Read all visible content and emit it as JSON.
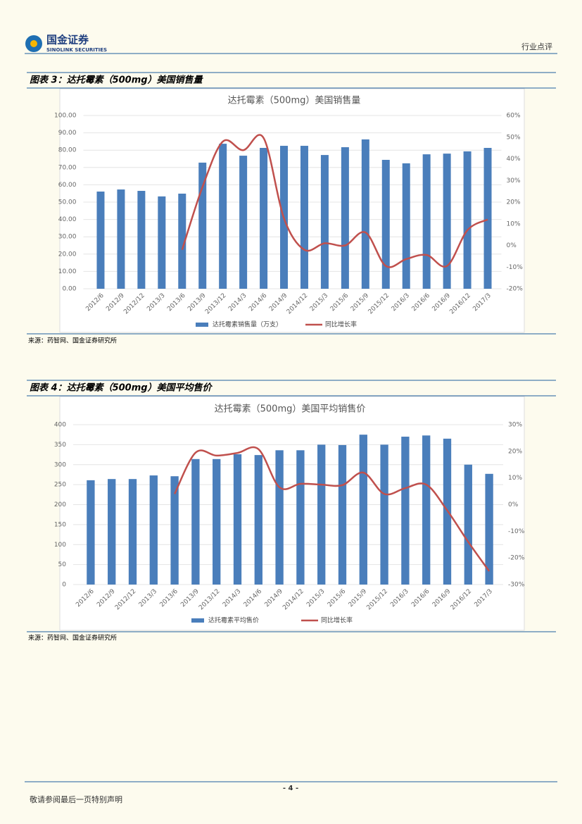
{
  "header": {
    "logo": "国金证券",
    "logo_sub": "SINOLINK SECURITIES",
    "section": "行业点评"
  },
  "captions": [
    "图表 3：达托霉素（500mg）美国销售量",
    "图表 4：达托霉素（500mg）美国平均售价"
  ],
  "sources": [
    "来源：药智网、国金证券研究所",
    "来源：药智网、国金证券研究所"
  ],
  "footer": {
    "page": "- 4 -",
    "note": "敬请参阅最后一页特别声明"
  },
  "chart_data": [
    {
      "type": "bar-line",
      "title": "达托霉素（500mg）美国销售量",
      "categories": [
        "2012/6",
        "2012/9",
        "2012/12",
        "2013/3",
        "2013/6",
        "2013/9",
        "2013/12",
        "2014/3",
        "2014/6",
        "2014/9",
        "2014/12",
        "2015/3",
        "2015/6",
        "2015/9",
        "2015/12",
        "2016/3",
        "2016/6",
        "2016/9",
        "2016/12",
        "2017/3"
      ],
      "series": [
        {
          "name": "达托霉素销售量（万支）",
          "type": "bar",
          "color": "#4a7ebb",
          "values": [
            56.1,
            57.3,
            56.5,
            53.3,
            54.9,
            72.8,
            83.7,
            76.8,
            81.3,
            82.5,
            82.5,
            77.2,
            81.7,
            86.2,
            74.4,
            72.4,
            77.6,
            78,
            79.3,
            81.3
          ]
        },
        {
          "name": "同比增长率",
          "type": "line",
          "axis": "y2",
          "color": "#c0504d",
          "values": [
            null,
            null,
            null,
            null,
            -2,
            27,
            48,
            44,
            49.6,
            12.5,
            -2,
            1,
            0,
            6,
            -9.5,
            -6.3,
            -4.4,
            -9.5,
            7,
            12
          ]
        }
      ],
      "ylim": [
        0,
        100
      ],
      "yticks": [
        {
          "value": 0,
          "label": "0.00"
        },
        {
          "value": 10,
          "label": "10.00"
        },
        {
          "value": 20,
          "label": "20.00"
        },
        {
          "value": 30,
          "label": "30.00"
        },
        {
          "value": 40,
          "label": "40.00"
        },
        {
          "value": 50,
          "label": "50.00"
        },
        {
          "value": 60,
          "label": "60.00"
        },
        {
          "value": 70,
          "label": "70.00"
        },
        {
          "value": 80,
          "label": "80.00"
        },
        {
          "value": 90,
          "label": "90.00"
        },
        {
          "value": 100,
          "label": "100.00"
        }
      ],
      "y2lim": [
        -20,
        60
      ],
      "y2ticks": [
        {
          "value": -20,
          "label": "-20%"
        },
        {
          "value": -10,
          "label": "-10%"
        },
        {
          "value": 0,
          "label": "0%"
        },
        {
          "value": 10,
          "label": "10%"
        },
        {
          "value": 20,
          "label": "20%"
        },
        {
          "value": 30,
          "label": "30%"
        },
        {
          "value": 40,
          "label": "40%"
        },
        {
          "value": 50,
          "label": "50%"
        },
        {
          "value": 60,
          "label": "60%"
        }
      ],
      "grid": true,
      "legend": "bottom"
    },
    {
      "type": "bar-line",
      "title": "达托霉素（500mg）美国平均销售价",
      "categories": [
        "2012/6",
        "2012/9",
        "2012/12",
        "2013/3",
        "2013/6",
        "2013/9",
        "2013/12",
        "2014/3",
        "2014/6",
        "2014/9",
        "2014/12",
        "2015/3",
        "2015/6",
        "2015/9",
        "2015/12",
        "2016/3",
        "2016/6",
        "2016/9",
        "2016/12",
        "2017/3"
      ],
      "series": [
        {
          "name": "达托霉素平均售价",
          "type": "bar",
          "color": "#4a7ebb",
          "values": [
            261,
            264,
            264,
            273,
            271,
            314,
            314,
            326,
            324,
            336,
            336,
            350,
            349,
            375,
            350,
            370,
            373,
            365,
            300,
            277
          ]
        },
        {
          "name": "同比增长率",
          "type": "line",
          "axis": "y2",
          "color": "#c0504d",
          "values": [
            null,
            null,
            null,
            null,
            4,
            19.5,
            18.4,
            19.4,
            20.8,
            6.5,
            7.8,
            7.5,
            7.3,
            12,
            4,
            6.2,
            7.5,
            -2.2,
            -14,
            -25
          ]
        }
      ],
      "ylim": [
        0,
        400
      ],
      "yticks": [
        0,
        50,
        100,
        150,
        200,
        250,
        300,
        350,
        400
      ],
      "y2lim": [
        -30,
        30
      ],
      "y2ticks": [
        {
          "value": -30,
          "label": "-30%"
        },
        {
          "value": -20,
          "label": "-20%"
        },
        {
          "value": -10,
          "label": "-10%"
        },
        {
          "value": 0,
          "label": "0%"
        },
        {
          "value": 10,
          "label": "10%"
        },
        {
          "value": 20,
          "label": "20%"
        },
        {
          "value": 30,
          "label": "30%"
        }
      ],
      "grid": true,
      "legend": "bottom"
    }
  ]
}
